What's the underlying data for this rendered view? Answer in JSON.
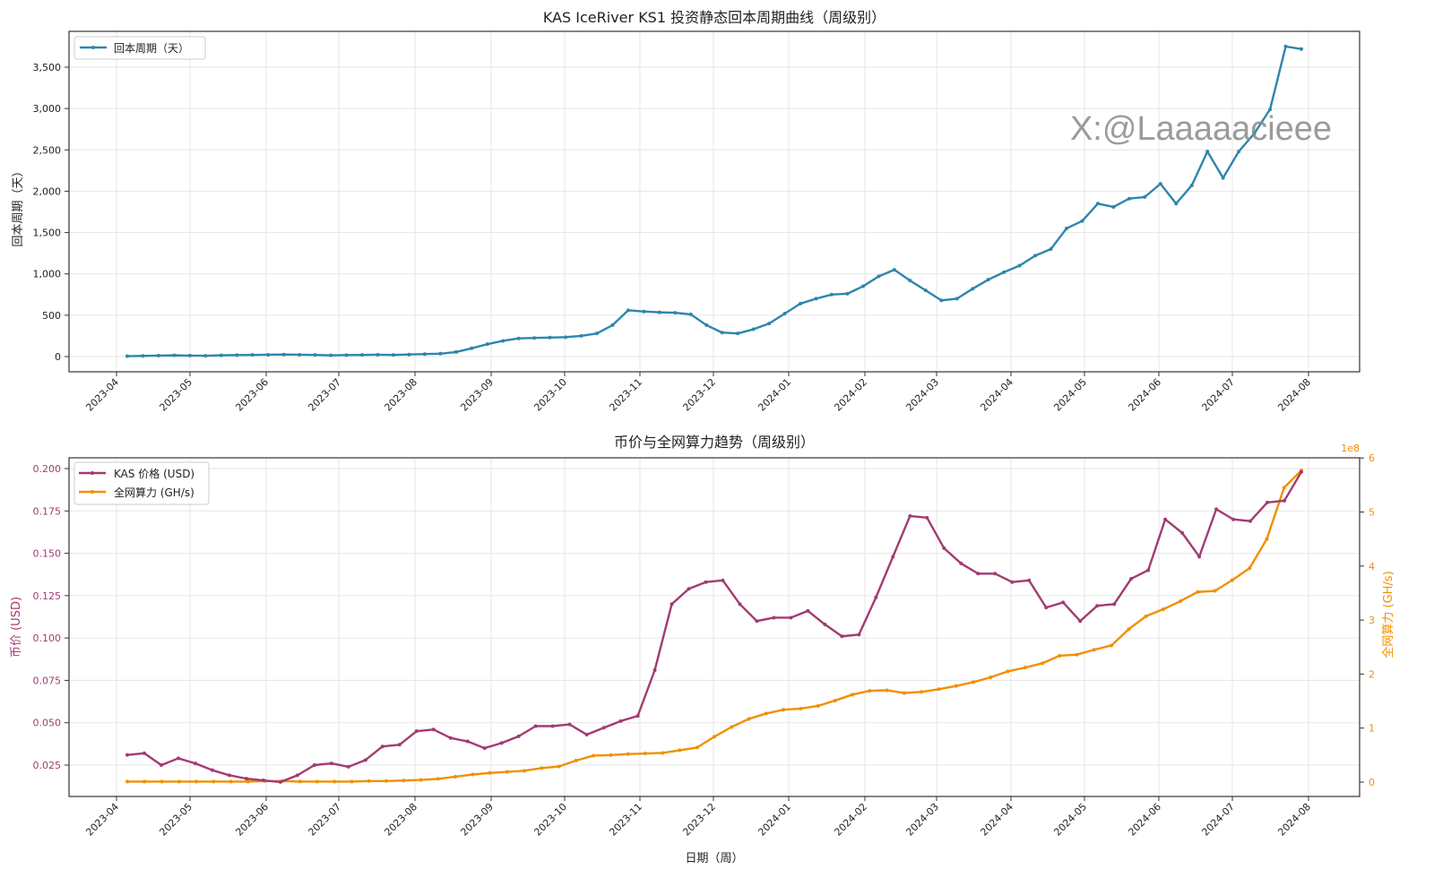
{
  "watermark": "X:@Laaaaacieee",
  "chart_data": [
    {
      "type": "line",
      "title": "KAS IceRiver KS1 投资静态回本周期曲线（周级别）",
      "xlabel": "",
      "ylabel": "回本周期（天）",
      "ylim": [
        -170,
        3840
      ],
      "yticks": [
        0,
        500,
        1000,
        1500,
        2000,
        2500,
        3000,
        3500
      ],
      "ytick_labels": [
        "0",
        "500",
        "1,000",
        "1,500",
        "2,000",
        "2,500",
        "3,000",
        "3,500"
      ],
      "xtick_labels": [
        "2023-04",
        "2023-05",
        "2023-06",
        "2023-07",
        "2023-08",
        "2023-09",
        "2023-10",
        "2023-11",
        "2023-12",
        "2024-01",
        "2024-02",
        "2024-03",
        "2024-04",
        "2024-05",
        "2024-06",
        "2024-07",
        "2024-08"
      ],
      "grid": true,
      "legend_position": "upper left",
      "series": [
        {
          "name": "回本周期（天）",
          "color": "#2e86ab",
          "values": [
            5,
            8,
            12,
            15,
            12,
            10,
            15,
            18,
            20,
            22,
            25,
            22,
            20,
            15,
            18,
            20,
            22,
            20,
            25,
            30,
            35,
            55,
            100,
            150,
            190,
            220,
            225,
            230,
            235,
            250,
            280,
            380,
            560,
            545,
            535,
            530,
            510,
            380,
            290,
            280,
            330,
            400,
            520,
            640,
            700,
            750,
            760,
            850,
            970,
            1050,
            920,
            800,
            680,
            700,
            820,
            930,
            1020,
            1100,
            1220,
            1300,
            1550,
            1640,
            1850,
            1810,
            1910,
            1930,
            2090,
            1850,
            2070,
            2480,
            2160,
            2480,
            2700,
            2990,
            3750,
            3720
          ]
        }
      ]
    },
    {
      "type": "line",
      "title": "币价与全网算力趋势（周级别）",
      "xlabel": "日期（周）",
      "ylabel": "币价 (USD)",
      "ylabel_right": "全网算力 (GH/s)",
      "ylim": [
        0.0135,
        0.2055
      ],
      "ylim_right": [
        -26000000.0,
        607000000.0
      ],
      "yticks": [
        0.025,
        0.05,
        0.075,
        0.1,
        0.125,
        0.15,
        0.175,
        0.2
      ],
      "ytick_labels": [
        "0.025",
        "0.050",
        "0.075",
        "0.100",
        "0.125",
        "0.150",
        "0.175",
        "0.200"
      ],
      "yticks_right": [
        0,
        1,
        2,
        3,
        4,
        5,
        6
      ],
      "right_axis_multiplier": "1e8",
      "xtick_labels": [
        "2023-04",
        "2023-05",
        "2023-06",
        "2023-07",
        "2023-08",
        "2023-09",
        "2023-10",
        "2023-11",
        "2023-12",
        "2024-01",
        "2024-02",
        "2024-03",
        "2024-04",
        "2024-05",
        "2024-06",
        "2024-07",
        "2024-08"
      ],
      "grid": true,
      "legend_position": "upper left",
      "series": [
        {
          "name": "KAS 价格 (USD)",
          "color": "#a23b72",
          "axis": "left",
          "values": [
            0.031,
            0.032,
            0.025,
            0.029,
            0.026,
            0.022,
            0.019,
            0.017,
            0.016,
            0.015,
            0.019,
            0.025,
            0.026,
            0.024,
            0.028,
            0.036,
            0.037,
            0.045,
            0.046,
            0.041,
            0.039,
            0.035,
            0.038,
            0.042,
            0.048,
            0.048,
            0.049,
            0.043,
            0.047,
            0.051,
            0.054,
            0.081,
            0.12,
            0.129,
            0.133,
            0.134,
            0.12,
            0.11,
            0.112,
            0.112,
            0.116,
            0.108,
            0.101,
            0.102,
            0.124,
            0.148,
            0.172,
            0.171,
            0.153,
            0.144,
            0.138,
            0.138,
            0.133,
            0.134,
            0.118,
            0.121,
            0.11,
            0.119,
            0.12,
            0.135,
            0.14,
            0.17,
            0.162,
            0.148,
            0.176,
            0.17,
            0.169,
            0.18,
            0.181,
            0.198
          ]
        },
        {
          "name": "全网算力 (GH/s)",
          "color": "#f18f01",
          "axis": "right",
          "values": [
            1000000.0,
            1000000.0,
            1000000.0,
            1000000.0,
            1000000.0,
            1000000.0,
            1000000.0,
            1000000.0,
            2000000.0,
            2000000.0,
            1000000.0,
            1000000.0,
            1000000.0,
            1000000.0,
            2000000.0,
            2000000.0,
            3000000.0,
            4000000.0,
            6000000.0,
            10000000.0,
            14000000.0,
            17000000.0,
            19000000.0,
            21000000.0,
            26000000.0,
            29000000.0,
            40000000.0,
            49000000.0,
            50000000.0,
            52000000.0,
            53000000.0,
            54000000.0,
            59000000.0,
            64000000.0,
            84000000.0,
            102000000.0,
            117000000.0,
            127000000.0,
            134000000.0,
            136000000.0,
            141000000.0,
            151000000.0,
            162000000.0,
            169000000.0,
            170000000.0,
            165000000.0,
            167000000.0,
            172000000.0,
            178000000.0,
            185000000.0,
            194000000.0,
            205000000.0,
            212000000.0,
            220000000.0,
            234000000.0,
            236000000.0,
            245000000.0,
            253000000.0,
            283000000.0,
            307000000.0,
            320000000.0,
            335000000.0,
            352000000.0,
            354000000.0,
            374000000.0,
            396000000.0,
            450000000.0,
            545000000.0,
            577000000.0
          ]
        }
      ]
    }
  ]
}
